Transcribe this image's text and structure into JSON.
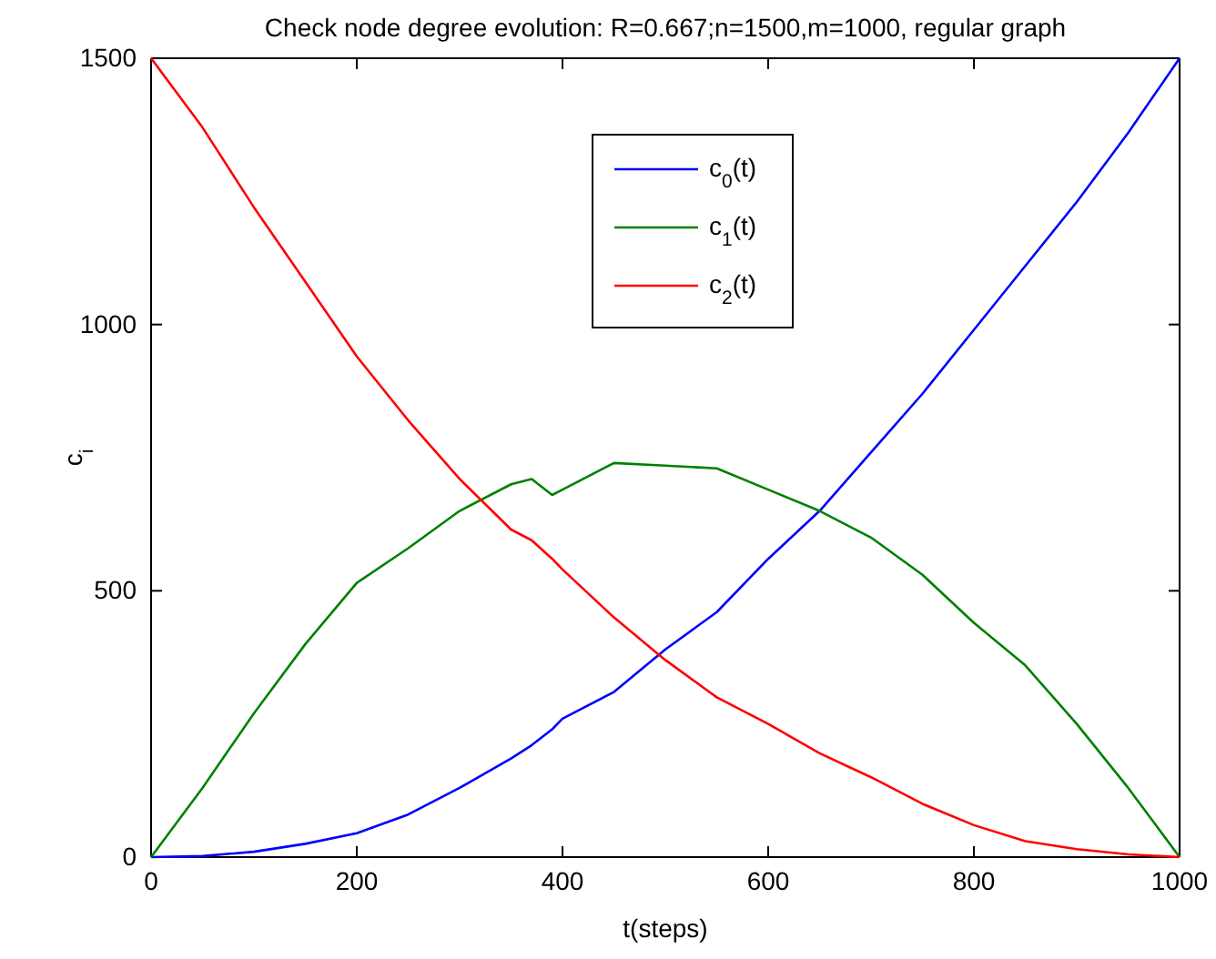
{
  "chart_data": {
    "type": "line",
    "title": "Check node degree evolution: R=0.667;n=1500,m=1000, regular graph",
    "xlabel": "t(steps)",
    "ylabel": "c$_{i}$",
    "x": [
      0,
      50,
      100,
      150,
      200,
      250,
      300,
      350,
      370,
      390,
      400,
      450,
      500,
      550,
      600,
      650,
      700,
      750,
      800,
      850,
      900,
      950,
      1000
    ],
    "series": [
      {
        "name": "c$_{0}$(t)",
        "color": "#0000ff",
        "values": [
          0,
          2,
          10,
          25,
          45,
          80,
          130,
          185,
          210,
          240,
          260,
          310,
          390,
          460,
          560,
          650,
          760,
          870,
          990,
          1110,
          1230,
          1360,
          1500
        ]
      },
      {
        "name": "c$_{1}$(t)",
        "color": "#008000",
        "values": [
          0,
          130,
          270,
          400,
          515,
          580,
          650,
          700,
          710,
          680,
          690,
          740,
          735,
          730,
          690,
          650,
          600,
          530,
          440,
          360,
          250,
          130,
          0
        ]
      },
      {
        "name": "c$_{2}$(t)",
        "color": "#ff0000",
        "values": [
          1500,
          1370,
          1220,
          1080,
          940,
          820,
          710,
          615,
          595,
          560,
          540,
          450,
          370,
          300,
          250,
          195,
          150,
          100,
          60,
          30,
          15,
          5,
          0
        ]
      }
    ],
    "xlim": [
      0,
      1000
    ],
    "ylim": [
      0,
      1500
    ],
    "xticks": [
      0,
      200,
      400,
      600,
      800,
      1000
    ],
    "yticks": [
      0,
      500,
      1000,
      1500
    ],
    "legend": "top",
    "grid": false,
    "marker": "none",
    "line_style": "solid"
  }
}
